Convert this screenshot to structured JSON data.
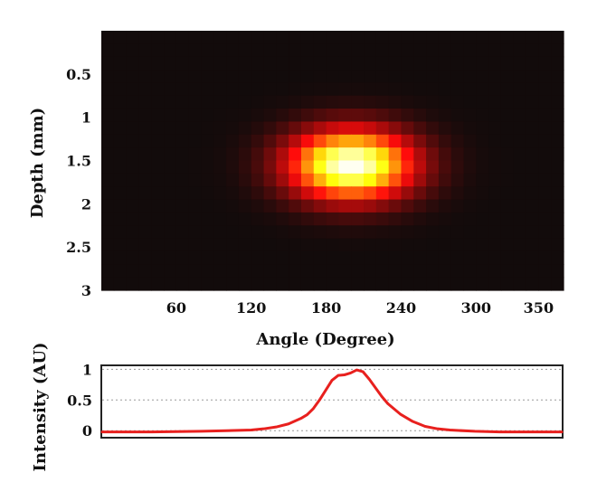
{
  "chart_data": [
    {
      "type": "heatmap",
      "title": "",
      "xlabel": "Angle (Degree)",
      "ylabel": "Depth (mm)",
      "xlim": [
        0,
        370
      ],
      "ylim": [
        3,
        0
      ],
      "xticks": [
        60,
        120,
        180,
        240,
        300,
        350
      ],
      "xtick_labels": [
        "60",
        "120",
        "180",
        "240",
        "300",
        "350"
      ],
      "yticks": [
        0.5,
        1,
        1.5,
        2,
        2.5,
        3
      ],
      "ytick_labels": [
        "0.5",
        "1",
        "1.5",
        "2",
        "2.5",
        "3"
      ],
      "colormap": "hot",
      "grid": {
        "cols": 37,
        "rows": 20
      },
      "peak": {
        "angle": 200,
        "depth": 1.55,
        "intensity": 1
      },
      "spread": {
        "angle_sigma": 34,
        "depth_sigma": 0.28
      }
    },
    {
      "type": "line",
      "title": "",
      "xlabel": "",
      "ylabel": "Intensity (AU)",
      "xlim": [
        0,
        370
      ],
      "ylim": [
        -0.1,
        1.05
      ],
      "yticks": [
        0,
        0.5,
        1
      ],
      "ytick_labels": [
        "0",
        "0.5",
        "1"
      ],
      "grid": true,
      "series": [
        {
          "name": "Intensity",
          "color": "#e8201e",
          "x": [
            0,
            40,
            80,
            100,
            120,
            130,
            140,
            150,
            160,
            165,
            170,
            175,
            180,
            185,
            190,
            195,
            200,
            205,
            210,
            215,
            220,
            225,
            230,
            240,
            250,
            260,
            270,
            280,
            300,
            320,
            340,
            370
          ],
          "y": [
            -0.02,
            -0.02,
            -0.01,
            0.0,
            0.01,
            0.03,
            0.06,
            0.11,
            0.2,
            0.26,
            0.36,
            0.5,
            0.66,
            0.82,
            0.9,
            0.91,
            0.94,
            0.99,
            0.96,
            0.84,
            0.7,
            0.56,
            0.44,
            0.27,
            0.15,
            0.07,
            0.03,
            0.01,
            -0.01,
            -0.02,
            -0.02,
            -0.02
          ]
        }
      ]
    }
  ]
}
